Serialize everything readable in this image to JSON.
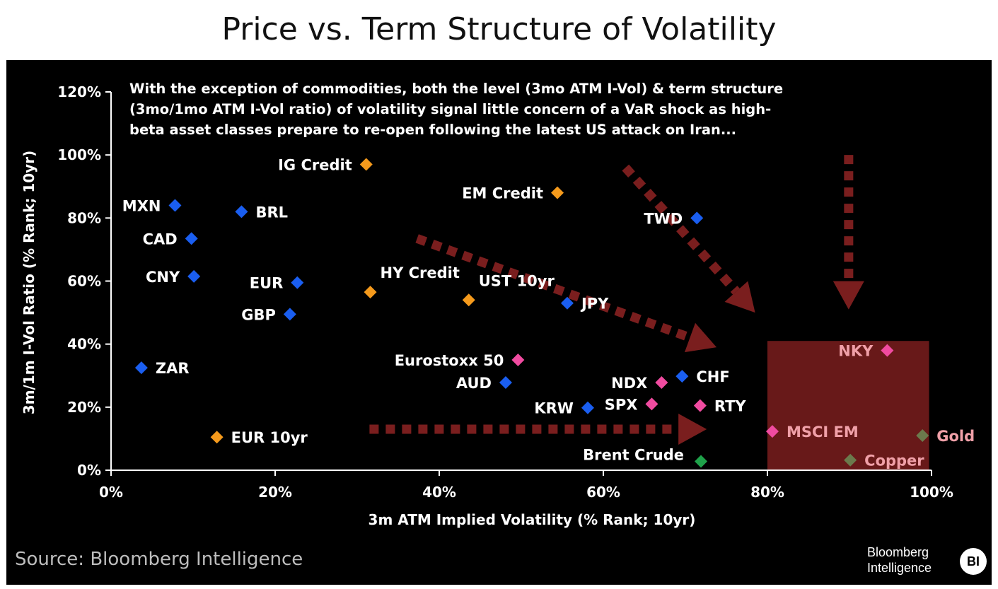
{
  "title": "Price vs. Term Structure of Volatility",
  "source": "Source: Bloomberg Intelligence",
  "logo": {
    "line1": "Bloomberg",
    "line2": "Intelligence",
    "badge": "BI"
  },
  "chart_data": {
    "type": "scatter",
    "annotation_lines": [
      "With the exception of commodities, both the level (3mo ATM I-Vol) & term structure",
      "(3mo/1mo ATM I-Vol ratio) of volatility signal little concern of a VaR shock as high-",
      "beta asset classes prepare to re-open following the latest US attack on Iran..."
    ],
    "xlabel": "3m ATM Implied Volatility (% Rank; 10yr)",
    "ylabel": "3m/1m I-Vol Ratio (% Rank; 10yr)",
    "xlim": [
      0,
      100
    ],
    "ylim": [
      0,
      120
    ],
    "x_ticks": [
      {
        "v": 0,
        "label": "0%"
      },
      {
        "v": 20,
        "label": "20%"
      },
      {
        "v": 40,
        "label": "40%"
      },
      {
        "v": 60,
        "label": "60%"
      },
      {
        "v": 80,
        "label": "80%"
      },
      {
        "v": 100,
        "label": "100%"
      }
    ],
    "y_ticks": [
      {
        "v": 0,
        "label": "0%"
      },
      {
        "v": 20,
        "label": "20%"
      },
      {
        "v": 40,
        "label": "40%"
      },
      {
        "v": 60,
        "label": "60%"
      },
      {
        "v": 80,
        "label": "80%"
      },
      {
        "v": 100,
        "label": "100%"
      },
      {
        "v": 120,
        "label": "120%"
      }
    ],
    "grid": false,
    "colors": {
      "fx": "#1a5ef0",
      "credit": "#f59a1c",
      "equity": "#f04ba0",
      "commodity_green": "#1fa24a",
      "commodity_olive": "#6b7a4c",
      "arrow": "#7a1e1e",
      "box": "#6e1a1a",
      "axis": "#ffffff",
      "label": "#ffffff",
      "label_in_box": "#f0a0a8"
    },
    "points": [
      {
        "label": "MXN",
        "x": 7.8,
        "y": 84,
        "group": "fx",
        "label_pos": "left"
      },
      {
        "label": "BRL",
        "x": 15.9,
        "y": 82,
        "group": "fx",
        "label_pos": "right"
      },
      {
        "label": "CAD",
        "x": 9.8,
        "y": 73.5,
        "group": "fx",
        "label_pos": "left"
      },
      {
        "label": "CNY",
        "x": 10.1,
        "y": 61.5,
        "group": "fx",
        "label_pos": "left"
      },
      {
        "label": "EUR",
        "x": 22.7,
        "y": 59.5,
        "group": "fx",
        "label_pos": "left"
      },
      {
        "label": "GBP",
        "x": 21.8,
        "y": 49.5,
        "group": "fx",
        "label_pos": "left"
      },
      {
        "label": "ZAR",
        "x": 3.7,
        "y": 32.5,
        "group": "fx",
        "label_pos": "right"
      },
      {
        "label": "TWD",
        "x": 71.4,
        "y": 80,
        "group": "fx",
        "label_pos": "left"
      },
      {
        "label": "JPY",
        "x": 55.6,
        "y": 53,
        "group": "fx",
        "label_pos": "right"
      },
      {
        "label": "CHF",
        "x": 69.6,
        "y": 29.8,
        "group": "fx",
        "label_pos": "right"
      },
      {
        "label": "AUD",
        "x": 48.1,
        "y": 27.8,
        "group": "fx",
        "label_pos": "left"
      },
      {
        "label": "KRW",
        "x": 58.1,
        "y": 19.8,
        "group": "fx",
        "label_pos": "left"
      },
      {
        "label": "IG Credit",
        "x": 31.1,
        "y": 97,
        "group": "credit",
        "label_pos": "left"
      },
      {
        "label": "EM Credit",
        "x": 54.4,
        "y": 88,
        "group": "credit",
        "label_pos": "left"
      },
      {
        "label": "HY Credit",
        "x": 31.6,
        "y": 56.5,
        "group": "credit",
        "label_pos": "above-right"
      },
      {
        "label": "UST 10yr",
        "x": 43.6,
        "y": 54,
        "group": "credit",
        "label_pos": "above-right"
      },
      {
        "label": "EUR 10yr",
        "x": 12.9,
        "y": 10.5,
        "group": "credit",
        "label_pos": "right"
      },
      {
        "label": "Eurostoxx 50",
        "x": 49.6,
        "y": 35,
        "group": "equity",
        "label_pos": "left"
      },
      {
        "label": "NDX",
        "x": 67.1,
        "y": 27.8,
        "group": "equity",
        "label_pos": "left"
      },
      {
        "label": "SPX",
        "x": 65.9,
        "y": 21,
        "group": "equity",
        "label_pos": "left"
      },
      {
        "label": "RTY",
        "x": 71.8,
        "y": 20.5,
        "group": "equity",
        "label_pos": "right"
      },
      {
        "label": "NKY",
        "x": 94.6,
        "y": 38,
        "group": "equity",
        "label_pos": "left"
      },
      {
        "label": "MSCI EM",
        "x": 80.6,
        "y": 12.3,
        "group": "equity",
        "label_pos": "right"
      },
      {
        "label": "Brent Crude",
        "x": 71.9,
        "y": 2.8,
        "group": "commodity_green",
        "label_pos": "above-left"
      },
      {
        "label": "Gold",
        "x": 98.9,
        "y": 11,
        "group": "commodity_olive",
        "label_pos": "right"
      },
      {
        "label": "Copper",
        "x": 90.1,
        "y": 3.2,
        "group": "commodity_olive",
        "label_pos": "right"
      }
    ],
    "highlight_box": {
      "x0": 80,
      "x1": 99.7,
      "y0": 0,
      "y1": 41
    },
    "arrows": [
      {
        "from": [
          62.7,
          96
        ],
        "to": [
          78.5,
          50
        ]
      },
      {
        "from": [
          37.3,
          73.5
        ],
        "to": [
          73.8,
          39
        ]
      },
      {
        "from": [
          31.5,
          13
        ],
        "to": [
          72.6,
          13
        ]
      },
      {
        "from": [
          89.9,
          100
        ],
        "to": [
          89.9,
          51
        ]
      }
    ]
  }
}
